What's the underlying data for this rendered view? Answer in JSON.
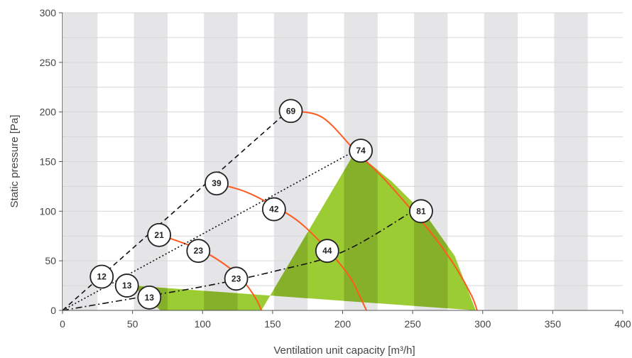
{
  "chart_data": {
    "type": "line",
    "xlabel": "Ventilation unit capacity [m³/h]",
    "ylabel": "Static pressure [Pa]",
    "xlim": [
      0,
      400
    ],
    "ylim": [
      0,
      300
    ],
    "x_ticks": [
      "0",
      "50",
      "100",
      "150",
      "200",
      "250",
      "300",
      "350",
      "400"
    ],
    "y_ticks": [
      "0",
      "50",
      "100",
      "150",
      "200",
      "250",
      "300"
    ],
    "grid": true,
    "colors": {
      "fan_curve": "#ff5a1f",
      "operating_area_light": "#9ccc34",
      "operating_area_dark": "#86b02a",
      "background_band": "#e5e5e8",
      "system_line": "#111111",
      "marker_fill": "#ffffff",
      "marker_stroke": "#222222"
    },
    "operating_area": {
      "x": [
        50,
        70,
        142,
        209,
        235,
        260,
        280,
        295
      ],
      "y": [
        25,
        0,
        0,
        160,
        130,
        95,
        55,
        0
      ]
    },
    "fan_curves": [
      {
        "x": [
          70,
          78,
          100,
          120,
          130,
          138,
          142
        ],
        "y": [
          75,
          72,
          60,
          42,
          28,
          12,
          0
        ]
      },
      {
        "x": [
          110,
          130,
          150,
          170,
          190,
          205,
          212,
          217
        ],
        "y": [
          128,
          120,
          106,
          88,
          60,
          34,
          15,
          0
        ]
      },
      {
        "x": [
          161,
          185,
          209,
          230,
          250,
          265,
          280,
          292,
          296
        ],
        "y": [
          201,
          195,
          161,
          132,
          100,
          75,
          45,
          15,
          0
        ]
      }
    ],
    "system_curves": [
      {
        "style": "dashed",
        "x": [
          0,
          161
        ],
        "y": [
          0,
          201
        ]
      },
      {
        "style": "dotted",
        "x": [
          0,
          209
        ],
        "y": [
          0,
          161
        ]
      },
      {
        "style": "dashdot",
        "x": [
          0,
          50,
          100,
          150,
          200,
          250
        ],
        "y": [
          0,
          12,
          24,
          39,
          59,
          100
        ]
      }
    ],
    "markers": [
      {
        "label": "12",
        "x": 28,
        "y": 34
      },
      {
        "label": "13",
        "x": 46,
        "y": 25
      },
      {
        "label": "13",
        "x": 62,
        "y": 13
      },
      {
        "label": "21",
        "x": 69,
        "y": 76
      },
      {
        "label": "23",
        "x": 97,
        "y": 60
      },
      {
        "label": "23",
        "x": 124,
        "y": 32
      },
      {
        "label": "39",
        "x": 110,
        "y": 128
      },
      {
        "label": "42",
        "x": 151,
        "y": 102
      },
      {
        "label": "44",
        "x": 189,
        "y": 60
      },
      {
        "label": "69",
        "x": 163,
        "y": 201
      },
      {
        "label": "74",
        "x": 213,
        "y": 161
      },
      {
        "label": "81",
        "x": 256,
        "y": 100
      }
    ]
  }
}
